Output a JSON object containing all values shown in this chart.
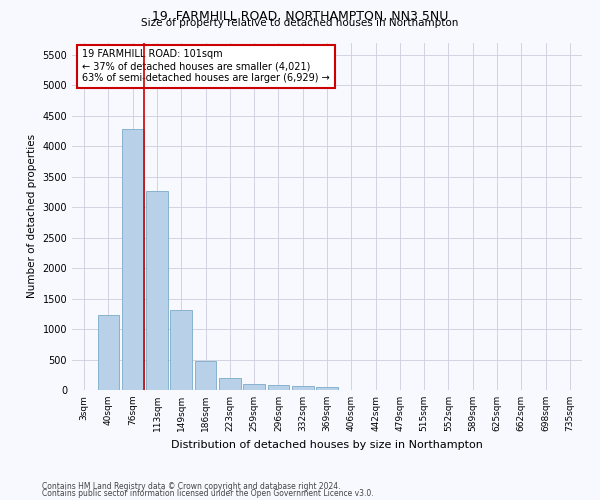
{
  "title1": "19, FARMHILL ROAD, NORTHAMPTON, NN3 5NU",
  "title2": "Size of property relative to detached houses in Northampton",
  "xlabel": "Distribution of detached houses by size in Northampton",
  "ylabel": "Number of detached properties",
  "categories": [
    "3sqm",
    "40sqm",
    "76sqm",
    "113sqm",
    "149sqm",
    "186sqm",
    "223sqm",
    "259sqm",
    "296sqm",
    "332sqm",
    "369sqm",
    "406sqm",
    "442sqm",
    "479sqm",
    "515sqm",
    "552sqm",
    "589sqm",
    "625sqm",
    "662sqm",
    "698sqm",
    "735sqm"
  ],
  "values": [
    0,
    1230,
    4280,
    3260,
    1310,
    480,
    200,
    100,
    80,
    60,
    55,
    0,
    0,
    0,
    0,
    0,
    0,
    0,
    0,
    0,
    0
  ],
  "bar_color": "#b8d0e8",
  "bar_edge_color": "#7aaac8",
  "vline_color": "#cc0000",
  "annotation_text": "19 FARMHILL ROAD: 101sqm\n← 37% of detached houses are smaller (4,021)\n63% of semi-detached houses are larger (6,929) →",
  "annotation_box_color": "#ffffff",
  "annotation_box_edge": "#cc0000",
  "ylim": [
    0,
    5700
  ],
  "yticks": [
    0,
    500,
    1000,
    1500,
    2000,
    2500,
    3000,
    3500,
    4000,
    4500,
    5000,
    5500
  ],
  "footer1": "Contains HM Land Registry data © Crown copyright and database right 2024.",
  "footer2": "Contains public sector information licensed under the Open Government Licence v3.0.",
  "background_color": "#f8f8ff",
  "grid_color": "#ccccdd"
}
